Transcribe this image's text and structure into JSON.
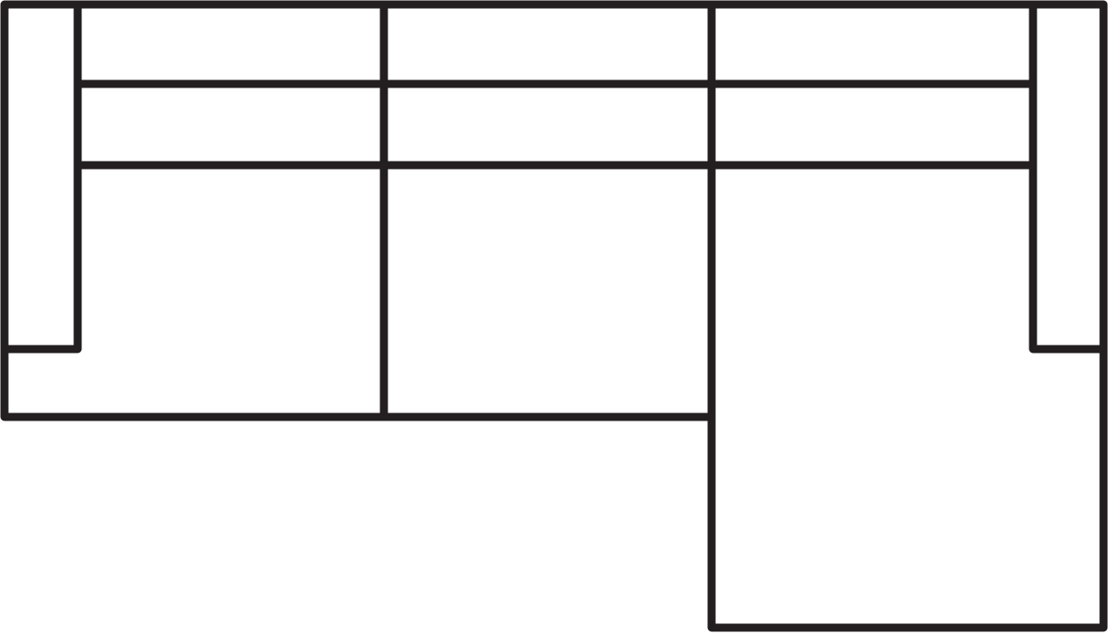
{
  "drawing": {
    "stroke_color": "#231f20",
    "background_color": "#ffffff"
  }
}
